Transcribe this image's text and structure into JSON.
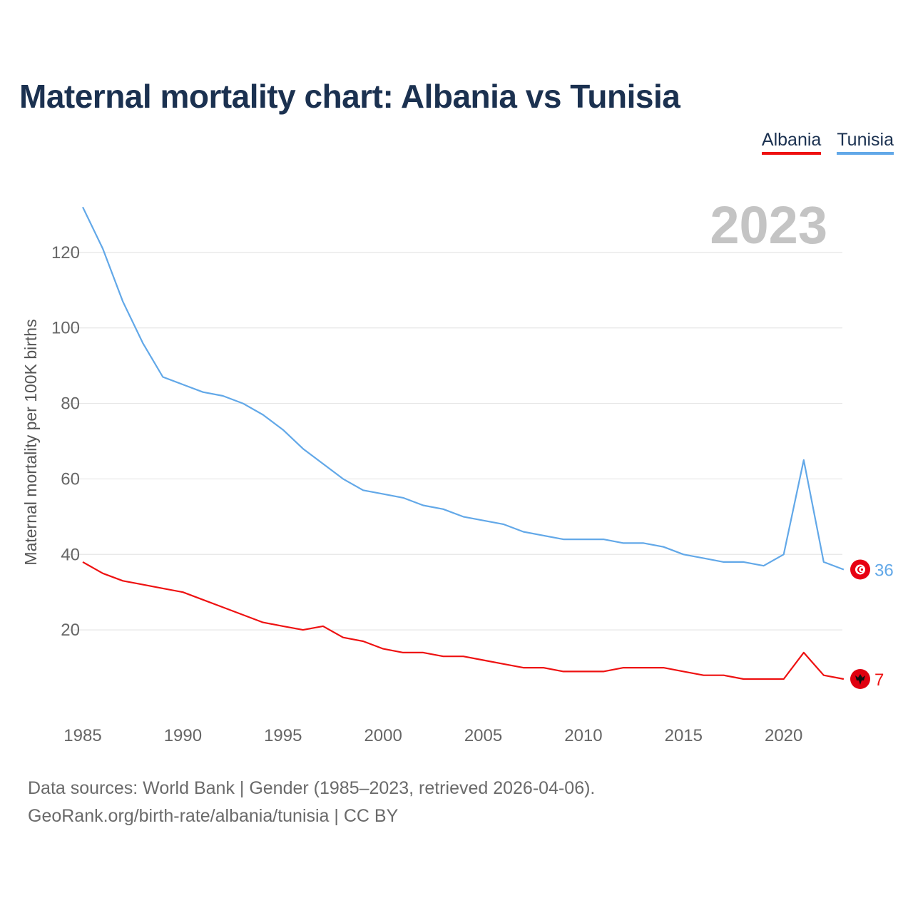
{
  "title": "Maternal mortality chart: Albania vs Tunisia",
  "legend": [
    {
      "label": "Albania",
      "color": "#ee1111"
    },
    {
      "label": "Tunisia",
      "color": "#62a8e8"
    }
  ],
  "year_label": "2023",
  "footer": {
    "line1": "Data sources: World Bank | Gender (1985–2023, retrieved 2026-04-06).",
    "line2": "GeoRank.org/birth-rate/albania/tunisia | CC BY"
  },
  "chart_data": {
    "type": "line",
    "title": "Maternal mortality chart: Albania vs Tunisia",
    "xlabel": "",
    "ylabel": "Maternal mortality per 100K births",
    "xlim": [
      1985,
      2023
    ],
    "ylim": [
      0,
      130
    ],
    "x_ticks": [
      1985,
      1990,
      1995,
      2000,
      2005,
      2010,
      2015,
      2020
    ],
    "y_ticks": [
      20,
      40,
      60,
      80,
      100,
      120
    ],
    "grid": true,
    "legend_position": "top-right",
    "x": [
      1985,
      1986,
      1987,
      1988,
      1989,
      1990,
      1991,
      1992,
      1993,
      1994,
      1995,
      1996,
      1997,
      1998,
      1999,
      2000,
      2001,
      2002,
      2003,
      2004,
      2005,
      2006,
      2007,
      2008,
      2009,
      2010,
      2011,
      2012,
      2013,
      2014,
      2015,
      2016,
      2017,
      2018,
      2019,
      2020,
      2021,
      2022,
      2023
    ],
    "series": [
      {
        "name": "Albania",
        "color": "#ee1111",
        "end_label": "7",
        "values": [
          38,
          35,
          33,
          32,
          31,
          30,
          28,
          26,
          24,
          22,
          21,
          20,
          21,
          18,
          17,
          15,
          14,
          14,
          13,
          13,
          12,
          11,
          10,
          10,
          9,
          9,
          9,
          10,
          10,
          10,
          9,
          8,
          8,
          7,
          7,
          7,
          14,
          8,
          7
        ]
      },
      {
        "name": "Tunisia",
        "color": "#62a8e8",
        "end_label": "36",
        "values": [
          132,
          121,
          107,
          96,
          87,
          85,
          83,
          82,
          80,
          77,
          73,
          68,
          64,
          60,
          57,
          56,
          55,
          53,
          52,
          50,
          49,
          48,
          46,
          45,
          44,
          44,
          44,
          43,
          43,
          42,
          40,
          39,
          38,
          38,
          37,
          40,
          65,
          38,
          36
        ]
      }
    ]
  }
}
